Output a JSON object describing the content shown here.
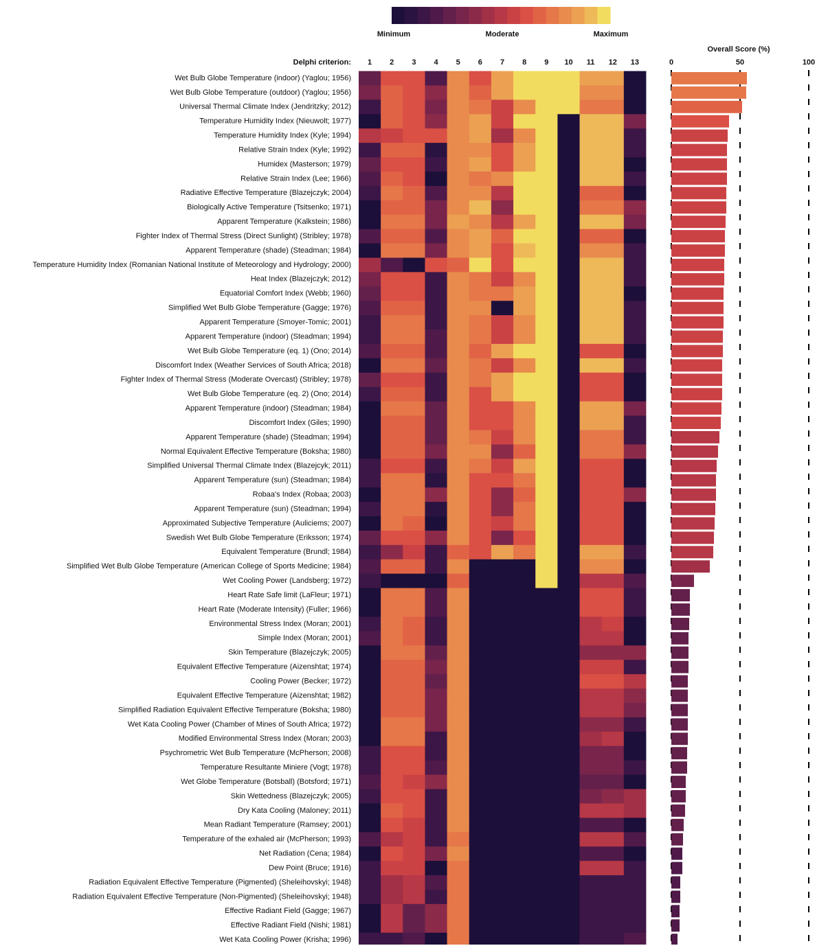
{
  "chart_data": [
    {
      "type": "heatmap",
      "x_label": "Delphi criterion:",
      "columns": [
        1,
        2,
        3,
        4,
        5,
        6,
        7,
        8,
        9,
        10,
        11,
        12,
        13
      ],
      "colorbar_labels": [
        "Minimum",
        "Moderate",
        "Maximum"
      ],
      "colorscale": [
        "#1c0f3a",
        "#2b1341",
        "#3c1646",
        "#4f1a49",
        "#63204b",
        "#78244b",
        "#8c2a49",
        "#a23047",
        "#b73846",
        "#cb4245",
        "#da5045",
        "#e16346",
        "#e57749",
        "#e88b4d",
        "#eba052",
        "#eeb958",
        "#f2dc5f"
      ],
      "rows": [
        "Wet Bulb Globe Temperature (indoor) (Yaglou; 1956)",
        "Wet Bulb Globe Temperature (outdoor) (Yaglou; 1956)",
        "Universal Thermal Climate Index (Jendritzky; 2012)",
        "Temperature Humidity Index (Nieuwolt; 1977)",
        "Temperature Humidity Index (Kyle; 1994)",
        "Relative Strain Index (Kyle; 1992)",
        "Humidex (Masterson; 1979)",
        "Relative Strain Index (Lee; 1966)",
        "Radiative Effective Temperature (Blazejczyk; 2004)",
        "Biologically Active Temperature (Tsitsenko; 1971)",
        "Apparent Temperature (Kalkstein; 1986)",
        "Fighter Index of Thermal Stress (Direct Sunlight) (Stribley; 1978)",
        "Apparent Temperature (shade) (Steadman; 1984)",
        "Temperature Humidity Index (Romanian National Institute of Meteorology and Hydrology; 2000)",
        "Heat Index (Blazejczyk; 2012)",
        "Equatorial Comfort Index (Webb; 1960)",
        "Simplified Wet Bulb Globe Temperature (Gagge; 1976)",
        "Apparent Temperature (Smoyer-Tomic; 2001)",
        "Apparent Temperature (indoor) (Steadman; 1994)",
        "Wet Bulb Globe Temperature (eq. 1) (Ono; 2014)",
        "Discomfort Index (Weather Services of South Africa; 2018)",
        "Fighter Index of Thermal Stress (Moderate Overcast) (Stribley; 1978)",
        "Wet Bulb Globe Temperature (eq. 2) (Ono; 2014)",
        "Apparent Temperature (indoor) (Steadman; 1984)",
        "Discomfort Index (Giles; 1990)",
        "Apparent Temperature (shade) (Steadman; 1994)",
        "Normal Equivalent Effective Temperature (Boksha; 1980)",
        "Simplified Universal Thermal Climate Index (Blazejcyk; 2011)",
        "Apparent Temperature (sun) (Steadman; 1984)",
        "Robaa's Index (Robaa; 2003)",
        "Apparent Temperature (sun) (Steadman; 1994)",
        "Approximated Subjective Temperature (Auliciems; 2007)",
        "Swedish Wet Bulb Globe Temperature (Eriksson; 1974)",
        "Equivalent Temperature (Brundl; 1984)",
        "Simplified Wet Bulb Globe Temperature (American College of Sports Medicine; 1984)",
        "Wet Cooling Power (Landsberg; 1972)",
        "Heart Rate Safe limit (LaFleur; 1971)",
        "Heart Rate (Moderate Intensity) (Fuller; 1966)",
        "Environmental Stress Index (Moran; 2001)",
        "Simple Index (Moran; 2001)",
        "Skin Temperature (Blazejczyk; 2005)",
        "Equivalent Effective Temperature (Aizenshtat; 1974)",
        "Cooling Power (Becker; 1972)",
        "Equivalent Effective Temperature (Aizenshtat; 1982)",
        "Simplified Radiation Equivalent Effective Temperature (Boksha; 1980)",
        "Wet Kata Cooling Power (Chamber of Mines of South Africa; 1972)",
        "Modified Environmental Stress Index (Moran; 2003)",
        "Psychrometric Wet Bulb Temperature (McPherson; 2008)",
        "Temperature Resultante Miniere (Vogt; 1978)",
        "Wet Globe Temperature (Botsball) (Botsford; 1971)",
        "Skin Wettedness (Blazejczyk; 2005)",
        "Dry Kata Cooling (Maloney; 2011)",
        "Mean Radiant Temperature (Ramsey; 2001)",
        "Temperature of the exhaled air (McPherson; 1993)",
        "Net Radiation (Cena; 1984)",
        "Dew Point (Bruce; 1916)",
        "Radiation Equivalent Effective Temperature (Pigmented) (Sheleihovskyi; 1948)",
        "Radiation Equivalent Effective Temperature (Non-Pigmented) (Sheleihovskyi; 1948)",
        "Effective Radiant Field (Gagge; 1967)",
        "Effective Radiant Field (Nishi; 1981)",
        "Wet Kata Cooling Power (Krisha; 1996)"
      ],
      "values": [
        [
          0.25,
          0.65,
          0.65,
          0.2,
          0.8,
          0.65,
          0.85,
          1,
          1,
          1,
          0.85,
          0.85,
          0
        ],
        [
          0.3,
          0.7,
          0.65,
          0.35,
          0.8,
          0.7,
          0.85,
          1,
          1,
          1,
          0.8,
          0.8,
          0
        ],
        [
          0.1,
          0.7,
          0.6,
          0.3,
          0.8,
          0.75,
          0.55,
          0.8,
          1,
          1,
          0.75,
          0.75,
          0
        ],
        [
          0,
          0.7,
          0.65,
          0.35,
          0.8,
          0.9,
          0.55,
          1,
          1,
          0,
          0.95,
          0.95,
          0.3
        ],
        [
          0.5,
          0.55,
          0.6,
          0.6,
          0.8,
          0.85,
          0.45,
          0.8,
          1,
          0,
          0.95,
          0.95,
          0.1
        ],
        [
          0.15,
          0.7,
          0.7,
          0.05,
          0.8,
          0.8,
          0.65,
          0.85,
          1,
          0,
          0.95,
          0.95,
          0.15
        ],
        [
          0.25,
          0.65,
          0.65,
          0.15,
          0.8,
          0.85,
          0.65,
          0.85,
          1,
          0,
          0.95,
          0.95,
          0
        ],
        [
          0.2,
          0.7,
          0.65,
          0,
          0.8,
          0.75,
          0.8,
          1,
          1,
          0,
          0.95,
          0.95,
          0.15
        ],
        [
          0.15,
          0.75,
          0.7,
          0.2,
          0.8,
          0.8,
          0.5,
          1,
          1,
          0,
          0.7,
          0.7,
          0
        ],
        [
          0,
          0.7,
          0.7,
          0.3,
          0.8,
          0.95,
          0.35,
          1,
          1,
          0,
          0.75,
          0.75,
          0.35
        ],
        [
          0,
          0.75,
          0.75,
          0.3,
          0.85,
          0.8,
          0.5,
          0.85,
          1,
          0,
          0.95,
          0.95,
          0.3
        ],
        [
          0.2,
          0.7,
          0.7,
          0.2,
          0.8,
          0.85,
          0.7,
          1,
          1,
          0,
          0.7,
          0.7,
          0
        ],
        [
          0,
          0.75,
          0.75,
          0.3,
          0.8,
          0.85,
          0.6,
          0.95,
          1,
          0,
          0.8,
          0.8,
          0.1
        ],
        [
          0.45,
          0.2,
          0,
          0.6,
          0.7,
          1,
          0.6,
          1,
          1,
          0,
          0.95,
          0.95,
          0.1
        ],
        [
          0.3,
          0.65,
          0.65,
          0.1,
          0.8,
          0.75,
          0.55,
          0.8,
          1,
          0,
          0.95,
          0.95,
          0.1
        ],
        [
          0.25,
          0.65,
          0.65,
          0.1,
          0.8,
          0.75,
          0.75,
          0.85,
          1,
          0,
          0.95,
          0.95,
          0
        ],
        [
          0.2,
          0.7,
          0.7,
          0.15,
          0.8,
          0.8,
          0,
          0.85,
          1,
          0,
          0.95,
          0.95,
          0.1
        ],
        [
          0.1,
          0.75,
          0.75,
          0.15,
          0.8,
          0.75,
          0.55,
          0.8,
          1,
          0,
          0.95,
          0.95,
          0.1
        ],
        [
          0.1,
          0.75,
          0.75,
          0.2,
          0.8,
          0.75,
          0.55,
          0.8,
          1,
          0,
          0.95,
          0.95,
          0.1
        ],
        [
          0.2,
          0.7,
          0.7,
          0.2,
          0.8,
          0.7,
          0.85,
          1,
          1,
          0,
          0.65,
          0.65,
          0
        ],
        [
          0,
          0.75,
          0.75,
          0.25,
          0.8,
          0.75,
          0.55,
          0.8,
          1,
          0,
          0.95,
          0.95,
          0.1
        ],
        [
          0.25,
          0.65,
          0.65,
          0.15,
          0.8,
          0.75,
          0.85,
          1,
          1,
          0,
          0.65,
          0.65,
          0
        ],
        [
          0.15,
          0.7,
          0.7,
          0.1,
          0.8,
          0.65,
          0.9,
          1,
          1,
          0,
          0.65,
          0.65,
          0
        ],
        [
          0,
          0.75,
          0.75,
          0.25,
          0.8,
          0.65,
          0.65,
          0.8,
          1,
          0,
          0.9,
          0.9,
          0.3
        ],
        [
          0,
          0.7,
          0.7,
          0.25,
          0.8,
          0.65,
          0.65,
          0.8,
          1,
          0,
          0.9,
          0.9,
          0.1
        ],
        [
          0,
          0.7,
          0.7,
          0.25,
          0.8,
          0.75,
          0.55,
          0.8,
          1,
          0,
          0.75,
          0.75,
          0.1
        ],
        [
          0,
          0.7,
          0.7,
          0.3,
          0.8,
          0.8,
          0.4,
          0.7,
          1,
          0,
          0.75,
          0.75,
          0.35
        ],
        [
          0.1,
          0.65,
          0.6,
          0.15,
          0.8,
          0.75,
          0.55,
          0.9,
          1,
          0,
          0.65,
          0.65,
          0
        ],
        [
          0.1,
          0.75,
          0.75,
          0.05,
          0.8,
          0.65,
          0.6,
          0.75,
          1,
          0,
          0.65,
          0.65,
          0
        ],
        [
          0,
          0.75,
          0.75,
          0.4,
          0.8,
          0.65,
          0.4,
          0.7,
          1,
          0,
          0.65,
          0.65,
          0.4
        ],
        [
          0.1,
          0.75,
          0.75,
          0.05,
          0.8,
          0.65,
          0.4,
          0.75,
          1,
          0,
          0.65,
          0.65,
          0
        ],
        [
          0,
          0.75,
          0.7,
          0,
          0.8,
          0.65,
          0.55,
          0.75,
          1,
          0,
          0.65,
          0.65,
          0
        ],
        [
          0.25,
          0.65,
          0.65,
          0.4,
          0.8,
          0.65,
          0.3,
          0.6,
          1,
          0,
          0.65,
          0.65,
          0
        ],
        [
          0.15,
          0.4,
          0.55,
          0.1,
          0.7,
          0.6,
          0.85,
          0.75,
          1,
          0,
          0.85,
          0.85,
          0.15
        ],
        [
          0.2,
          0.7,
          0.7,
          0.15,
          0.8,
          0,
          0,
          0,
          1,
          0,
          0.8,
          0.8,
          0
        ],
        [
          0.1,
          0,
          0,
          0,
          0.7,
          0,
          0,
          0,
          1,
          0,
          0.5,
          0.5,
          0.2
        ],
        [
          0,
          0.75,
          0.75,
          0.2,
          0.8,
          0,
          0,
          0,
          0,
          0,
          0.65,
          0.65,
          0.1
        ],
        [
          0,
          0.75,
          0.75,
          0.2,
          0.8,
          0,
          0,
          0,
          0,
          0,
          0.65,
          0.65,
          0.1
        ],
        [
          0.15,
          0.75,
          0.7,
          0.1,
          0.8,
          0,
          0,
          0,
          0,
          0,
          0.5,
          0.55,
          0
        ],
        [
          0.2,
          0.75,
          0.7,
          0.1,
          0.8,
          0,
          0,
          0,
          0,
          0,
          0.5,
          0.5,
          0
        ],
        [
          0,
          0.75,
          0.75,
          0.25,
          0.8,
          0,
          0,
          0,
          0,
          0,
          0.4,
          0.35,
          0.4
        ],
        [
          0,
          0.7,
          0.7,
          0.3,
          0.8,
          0,
          0,
          0,
          0,
          0,
          0.55,
          0.55,
          0.15
        ],
        [
          0,
          0.7,
          0.7,
          0.25,
          0.8,
          0,
          0,
          0,
          0,
          0,
          0.65,
          0.65,
          0.5
        ],
        [
          0,
          0.7,
          0.7,
          0.3,
          0.8,
          0,
          0,
          0,
          0,
          0,
          0.5,
          0.5,
          0.35
        ],
        [
          0,
          0.7,
          0.7,
          0.3,
          0.8,
          0,
          0,
          0,
          0,
          0,
          0.5,
          0.5,
          0.3
        ],
        [
          0,
          0.75,
          0.75,
          0.3,
          0.8,
          0,
          0,
          0,
          0,
          0,
          0.35,
          0.35,
          0.1
        ],
        [
          0,
          0.75,
          0.75,
          0.1,
          0.8,
          0,
          0,
          0,
          0,
          0,
          0.45,
          0.5,
          0
        ],
        [
          0.1,
          0.65,
          0.65,
          0.15,
          0.8,
          0,
          0,
          0,
          0,
          0,
          0.3,
          0.3,
          0
        ],
        [
          0.1,
          0.65,
          0.65,
          0.2,
          0.8,
          0,
          0,
          0,
          0,
          0,
          0.3,
          0.3,
          0.1
        ],
        [
          0.2,
          0.6,
          0.55,
          0.4,
          0.8,
          0,
          0,
          0,
          0,
          0,
          0.25,
          0.25,
          0
        ],
        [
          0.1,
          0.65,
          0.6,
          0.1,
          0.8,
          0,
          0,
          0,
          0,
          0,
          0.3,
          0.35,
          0.45
        ],
        [
          0,
          0.7,
          0.6,
          0.15,
          0.8,
          0,
          0,
          0,
          0,
          0,
          0.5,
          0.5,
          0.45
        ],
        [
          0,
          0.65,
          0.55,
          0.15,
          0.8,
          0,
          0,
          0,
          0,
          0,
          0.2,
          0.2,
          0
        ],
        [
          0.2,
          0.5,
          0.55,
          0.1,
          0.75,
          0,
          0,
          0,
          0,
          0,
          0.5,
          0.5,
          0.2
        ],
        [
          0,
          0.65,
          0.55,
          0.3,
          0.8,
          0,
          0,
          0,
          0,
          0,
          0.2,
          0.2,
          0
        ],
        [
          0.15,
          0.55,
          0.55,
          0,
          0.75,
          0,
          0,
          0,
          0,
          0,
          0.5,
          0.5,
          0.15
        ],
        [
          0.1,
          0.45,
          0.5,
          0.2,
          0.75,
          0,
          0,
          0,
          0,
          0,
          0.15,
          0.15,
          0.1
        ],
        [
          0.1,
          0.45,
          0.5,
          0.15,
          0.75,
          0,
          0,
          0,
          0,
          0,
          0.15,
          0.15,
          0.1
        ],
        [
          0,
          0.5,
          0.25,
          0.4,
          0.75,
          0,
          0,
          0,
          0,
          0,
          0.15,
          0.15,
          0.1
        ],
        [
          0,
          0.5,
          0.25,
          0.4,
          0.75,
          0,
          0,
          0,
          0,
          0,
          0.15,
          0.15,
          0.1
        ],
        [
          0.15,
          0.1,
          0.2,
          0,
          0.75,
          0,
          0,
          0,
          0,
          0,
          0.1,
          0.1,
          0.2
        ]
      ]
    },
    {
      "type": "bar",
      "orientation": "horizontal",
      "title": "Overall Score (%)",
      "xlim": [
        0,
        100
      ],
      "xticks": [
        0,
        50,
        100
      ],
      "grid": true,
      "values": [
        55,
        54.5,
        51.5,
        42,
        41,
        40.5,
        40.5,
        40.5,
        40,
        40,
        39.5,
        39,
        39,
        38.5,
        38.5,
        38,
        38,
        38,
        37.5,
        37.5,
        37,
        37,
        37,
        36.5,
        36,
        35,
        34,
        33,
        32.5,
        32.5,
        32,
        31.5,
        31,
        30.5,
        28,
        16.5,
        13.5,
        13.5,
        13,
        12.5,
        12.5,
        12.5,
        12,
        12,
        12,
        12,
        12,
        11.5,
        11.5,
        10.5,
        10.5,
        10,
        9,
        8.5,
        8,
        8,
        6.5,
        6.5,
        6,
        6,
        4.5
      ]
    }
  ]
}
